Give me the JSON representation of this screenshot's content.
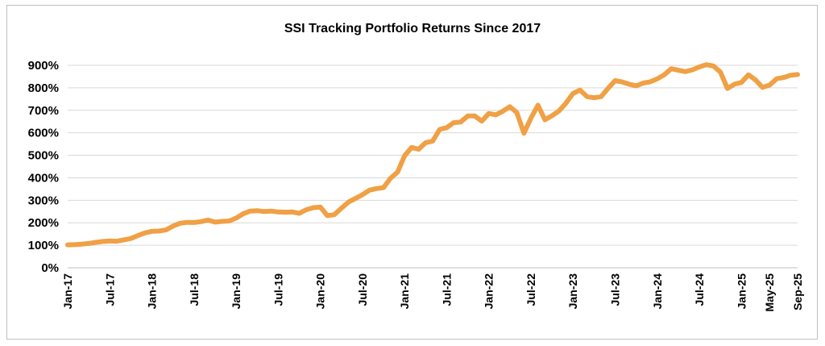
{
  "chart_data": {
    "type": "line",
    "title": "SSI Tracking Portfolio Returns Since 2017",
    "xlabel": "",
    "ylabel": "",
    "ylim": [
      0,
      900
    ],
    "ytick_labels": [
      "0%",
      "100%",
      "200%",
      "300%",
      "400%",
      "500%",
      "600%",
      "700%",
      "800%",
      "900%"
    ],
    "ytick_values": [
      0,
      100,
      200,
      300,
      400,
      500,
      600,
      700,
      800,
      900
    ],
    "xtick_labels": [
      "Jan-17",
      "Jul-17",
      "Jan-18",
      "Jul-18",
      "Jan-19",
      "Jul-19",
      "Jan-20",
      "Jul-20",
      "Jan-21",
      "Jul-21",
      "Jan-22",
      "Jul-22",
      "Jan-23",
      "Jul-23",
      "Jan-24",
      "Jul-24",
      "Jan-25",
      "May-25",
      "Sep-25"
    ],
    "xtick_months": [
      0,
      6,
      12,
      18,
      24,
      30,
      36,
      42,
      48,
      54,
      60,
      66,
      72,
      78,
      84,
      90,
      96,
      100,
      104
    ],
    "grid": true,
    "legend": "none",
    "series": [
      {
        "color": "#F0A045",
        "x_start": "Jan-17",
        "values": [
          102,
          103,
          105,
          108,
          113,
          117,
          119,
          118,
          124,
          130,
          143,
          155,
          162,
          163,
          168,
          185,
          198,
          202,
          201,
          205,
          212,
          203,
          206,
          208,
          221,
          240,
          252,
          254,
          250,
          252,
          248,
          247,
          248,
          242,
          258,
          267,
          270,
          232,
          236,
          265,
          292,
          308,
          325,
          345,
          352,
          356,
          398,
          425,
          498,
          535,
          527,
          556,
          563,
          615,
          623,
          645,
          648,
          675,
          675,
          652,
          686,
          680,
          696,
          716,
          690,
          598,
          665,
          723,
          658,
          676,
          697,
          732,
          775,
          790,
          761,
          756,
          761,
          798,
          832,
          826,
          816,
          809,
          821,
          827,
          840,
          858,
          885,
          878,
          872,
          880,
          893,
          903,
          897,
          870,
          797,
          816,
          824,
          858,
          835,
          802,
          812,
          840,
          846,
          856,
          859
        ]
      }
    ]
  }
}
